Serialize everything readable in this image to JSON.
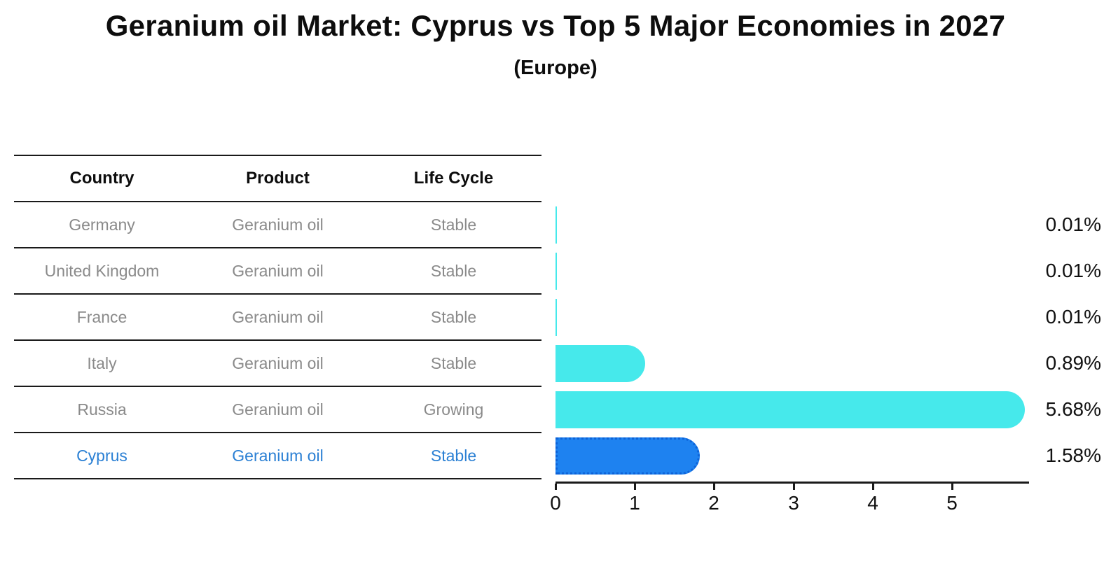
{
  "title": "Geranium oil Market: Cyprus vs Top 5 Major Economies in 2027",
  "subtitle": "(Europe)",
  "table": {
    "headers": [
      "Country",
      "Product",
      "Life Cycle"
    ],
    "rows": [
      {
        "country": "Germany",
        "product": "Geranium oil",
        "life_cycle": "Stable",
        "highlight": false
      },
      {
        "country": "United Kingdom",
        "product": "Geranium oil",
        "life_cycle": "Stable",
        "highlight": false
      },
      {
        "country": "France",
        "product": "Geranium oil",
        "life_cycle": "Stable",
        "highlight": false
      },
      {
        "country": "Italy",
        "product": "Geranium oil",
        "life_cycle": "Stable",
        "highlight": false
      },
      {
        "country": "Russia",
        "product": "Geranium oil",
        "life_cycle": "Growing",
        "highlight": false
      },
      {
        "country": "Cyprus",
        "product": "Geranium oil",
        "life_cycle": "Stable",
        "highlight": true
      }
    ]
  },
  "chart_data": {
    "type": "bar",
    "orientation": "horizontal",
    "title": "Geranium oil Market: Cyprus vs Top 5 Major Economies in 2027",
    "subtitle": "(Europe)",
    "categories": [
      "Germany",
      "United Kingdom",
      "France",
      "Italy",
      "Russia",
      "Cyprus"
    ],
    "values": [
      0.01,
      0.01,
      0.01,
      0.89,
      5.68,
      1.58
    ],
    "value_labels": [
      "0.01%",
      "0.01%",
      "0.01%",
      "0.89%",
      "5.68%",
      "1.58%"
    ],
    "xticks": [
      0,
      1,
      2,
      3,
      4,
      5
    ],
    "xlim": [
      0,
      5.97
    ],
    "xlabel": "",
    "ylabel": "",
    "grid": false,
    "legend_position": "left-table",
    "bar_color": "#46e9eb",
    "highlight_color": "#1e82f0",
    "highlight_border_color": "#0e63d8",
    "highlight_index": 5,
    "axis_color": "#1a1a1a",
    "text_color": "#111111",
    "muted_text_color": "#8a8a8a",
    "highlight_text_color": "#2b80d4"
  }
}
